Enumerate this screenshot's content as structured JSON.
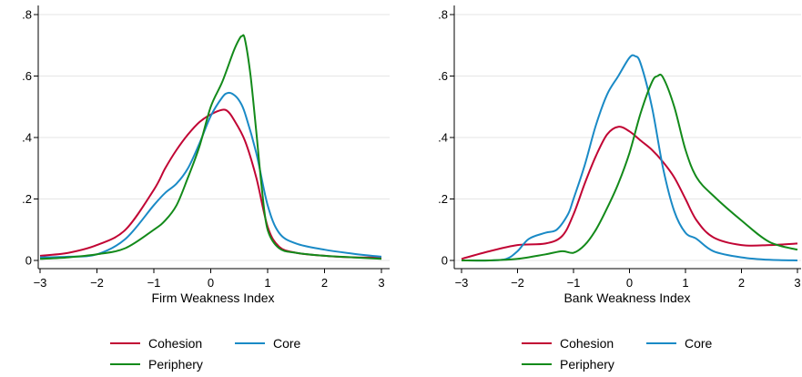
{
  "colors": {
    "cohesion": "#c10534",
    "core": "#1a8ac6",
    "periphery": "#138a1a",
    "grid": "#e6e6e6"
  },
  "chart_data": [
    {
      "type": "line",
      "title": "",
      "xlabel": "Firm Weakness Index",
      "ylabel": "",
      "xlim": [
        -3,
        3
      ],
      "ylim": [
        0,
        0.8
      ],
      "xticks": [
        -3,
        -2,
        -1,
        0,
        1,
        2,
        3
      ],
      "xtick_labels": [
        "−3",
        "−2",
        "−1",
        "0",
        "1",
        "2",
        "3"
      ],
      "yticks": [
        0,
        0.2,
        0.4,
        0.6,
        0.8
      ],
      "ytick_labels": [
        "0",
        ".2",
        ".4",
        ".6",
        ".8"
      ],
      "grid": true,
      "legend_position": "bottom",
      "series": [
        {
          "name": "Cohesion",
          "color_key": "cohesion",
          "x": [
            -3,
            -2.5,
            -2,
            -1.5,
            -1,
            -0.8,
            -0.6,
            -0.4,
            -0.2,
            0,
            0.2,
            0.3,
            0.4,
            0.6,
            0.8,
            1,
            1.2,
            1.5,
            2,
            2.5,
            3
          ],
          "y": [
            0.015,
            0.025,
            0.05,
            0.1,
            0.23,
            0.3,
            0.36,
            0.41,
            0.45,
            0.475,
            0.49,
            0.485,
            0.46,
            0.39,
            0.27,
            0.11,
            0.045,
            0.025,
            0.015,
            0.01,
            0.01
          ]
        },
        {
          "name": "Core",
          "color_key": "core",
          "x": [
            -3,
            -2.5,
            -2,
            -1.5,
            -1,
            -0.8,
            -0.6,
            -0.4,
            -0.2,
            0,
            0.2,
            0.3,
            0.4,
            0.5,
            0.6,
            0.8,
            1,
            1.2,
            1.5,
            2,
            2.5,
            3
          ],
          "y": [
            0.01,
            0.012,
            0.02,
            0.07,
            0.18,
            0.22,
            0.25,
            0.3,
            0.38,
            0.47,
            0.53,
            0.545,
            0.54,
            0.52,
            0.48,
            0.35,
            0.18,
            0.09,
            0.055,
            0.035,
            0.022,
            0.012
          ]
        },
        {
          "name": "Periphery",
          "color_key": "periphery",
          "x": [
            -3,
            -2.5,
            -2,
            -1.5,
            -1,
            -0.8,
            -0.6,
            -0.4,
            -0.2,
            0,
            0.2,
            0.4,
            0.5,
            0.55,
            0.6,
            0.7,
            0.8,
            0.9,
            1,
            1.2,
            1.5,
            2,
            2.5,
            3
          ],
          "y": [
            0.005,
            0.01,
            0.02,
            0.04,
            0.1,
            0.13,
            0.18,
            0.27,
            0.37,
            0.5,
            0.58,
            0.68,
            0.72,
            0.73,
            0.72,
            0.6,
            0.42,
            0.23,
            0.1,
            0.04,
            0.025,
            0.015,
            0.01,
            0.005
          ]
        }
      ]
    },
    {
      "type": "line",
      "title": "",
      "xlabel": "Bank Weakness Index",
      "ylabel": "",
      "xlim": [
        -3,
        3
      ],
      "ylim": [
        0,
        0.8
      ],
      "xticks": [
        -3,
        -2,
        -1,
        0,
        1,
        2,
        3
      ],
      "xtick_labels": [
        "−3",
        "−2",
        "−1",
        "0",
        "1",
        "2",
        "3"
      ],
      "yticks": [
        0,
        0.2,
        0.4,
        0.6,
        0.8
      ],
      "ytick_labels": [
        "0",
        ".2",
        ".4",
        ".6",
        ".8"
      ],
      "grid": true,
      "legend_position": "bottom",
      "series": [
        {
          "name": "Cohesion",
          "color_key": "cohesion",
          "x": [
            -3,
            -2.5,
            -2,
            -1.5,
            -1.2,
            -1,
            -0.8,
            -0.6,
            -0.4,
            -0.2,
            0,
            0.2,
            0.4,
            0.6,
            0.8,
            1,
            1.2,
            1.5,
            2,
            2.5,
            3
          ],
          "y": [
            0.005,
            0.03,
            0.05,
            0.055,
            0.08,
            0.15,
            0.25,
            0.34,
            0.41,
            0.435,
            0.42,
            0.39,
            0.36,
            0.32,
            0.27,
            0.2,
            0.13,
            0.075,
            0.05,
            0.05,
            0.055
          ]
        },
        {
          "name": "Core",
          "color_key": "core",
          "x": [
            -3,
            -2.5,
            -2.2,
            -2,
            -1.8,
            -1.5,
            -1.3,
            -1.1,
            -1,
            -0.8,
            -0.6,
            -0.4,
            -0.2,
            0,
            0.1,
            0.2,
            0.4,
            0.6,
            0.8,
            1,
            1.2,
            1.5,
            2,
            2.5,
            3
          ],
          "y": [
            0,
            0,
            0.005,
            0.03,
            0.07,
            0.09,
            0.1,
            0.15,
            0.2,
            0.31,
            0.44,
            0.54,
            0.6,
            0.66,
            0.665,
            0.64,
            0.5,
            0.3,
            0.16,
            0.09,
            0.07,
            0.03,
            0.01,
            0.002,
            0
          ]
        },
        {
          "name": "Periphery",
          "color_key": "periphery",
          "x": [
            -3,
            -2.5,
            -2,
            -1.5,
            -1.2,
            -1,
            -0.8,
            -0.6,
            -0.4,
            -0.2,
            0,
            0.2,
            0.4,
            0.5,
            0.6,
            0.8,
            1,
            1.2,
            1.5,
            2,
            2.5,
            3
          ],
          "y": [
            0,
            0,
            0.005,
            0.02,
            0.03,
            0.025,
            0.05,
            0.1,
            0.17,
            0.25,
            0.35,
            0.48,
            0.58,
            0.6,
            0.595,
            0.5,
            0.36,
            0.27,
            0.21,
            0.13,
            0.06,
            0.035
          ]
        }
      ]
    }
  ]
}
